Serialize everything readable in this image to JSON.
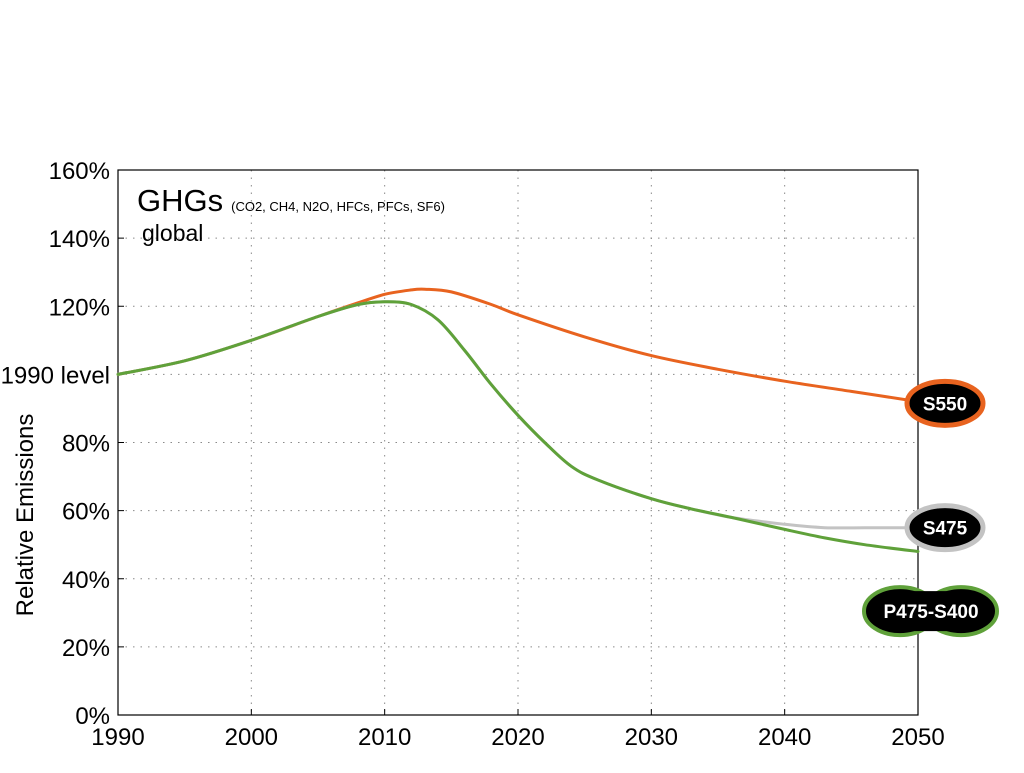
{
  "chart_data": {
    "type": "line",
    "title": "GHGs",
    "title_detail": "(CO2, CH4, N2O, HFCs, PFCs, SF6)",
    "subtitle": "global",
    "xlabel": "",
    "ylabel": "Relative Emissions",
    "xlim": [
      1990,
      2050
    ],
    "ylim": [
      0,
      160
    ],
    "grid": true,
    "x_ticks": [
      {
        "value": 1990,
        "label": "1990"
      },
      {
        "value": 2000,
        "label": "2000"
      },
      {
        "value": 2010,
        "label": "2010"
      },
      {
        "value": 2020,
        "label": "2020"
      },
      {
        "value": 2030,
        "label": "2030"
      },
      {
        "value": 2040,
        "label": "2040"
      },
      {
        "value": 2050,
        "label": "2050"
      }
    ],
    "y_ticks": [
      {
        "value": 0,
        "label": "0%"
      },
      {
        "value": 20,
        "label": "20%"
      },
      {
        "value": 40,
        "label": "40%"
      },
      {
        "value": 60,
        "label": "60%"
      },
      {
        "value": 80,
        "label": "80%"
      },
      {
        "value": 100,
        "label": "1990 level"
      },
      {
        "value": 120,
        "label": "120%"
      },
      {
        "value": 140,
        "label": "140%"
      },
      {
        "value": 160,
        "label": "160%"
      }
    ],
    "series": [
      {
        "name": "S550",
        "color": "#e8631f",
        "x": [
          1990,
          1995,
          2000,
          2005,
          2008,
          2010,
          2012,
          2013,
          2015,
          2018,
          2020,
          2025,
          2030,
          2035,
          2040,
          2045,
          2050
        ],
        "values": [
          100,
          104,
          110,
          117,
          121,
          123.5,
          124.8,
          125,
          124.2,
          120.5,
          117.5,
          111,
          105.5,
          101.5,
          98,
          95,
          92
        ]
      },
      {
        "name": "S475",
        "color": "#c3c3c3",
        "x": [
          1990,
          1995,
          2000,
          2005,
          2008,
          2010,
          2012,
          2014,
          2016,
          2018,
          2020,
          2022,
          2024,
          2026,
          2030,
          2033,
          2036,
          2040,
          2043,
          2046,
          2050
        ],
        "values": [
          100,
          104,
          110,
          117,
          120.5,
          121.3,
          120.5,
          116,
          107,
          97,
          88,
          80,
          73,
          69,
          63.5,
          60.5,
          58,
          56,
          55,
          55,
          55
        ]
      },
      {
        "name": "P475-S400",
        "color": "#5fa13a",
        "x": [
          1990,
          1995,
          2000,
          2005,
          2008,
          2010,
          2012,
          2014,
          2016,
          2018,
          2020,
          2022,
          2024,
          2026,
          2030,
          2033,
          2036,
          2040,
          2043,
          2046,
          2050
        ],
        "values": [
          100,
          104,
          110,
          117,
          120.5,
          121.3,
          120.5,
          116,
          107,
          97,
          88,
          80,
          73,
          69,
          63.5,
          60.5,
          58,
          54.5,
          52,
          50,
          48
        ]
      }
    ],
    "end_labels": [
      {
        "text": "S550",
        "color": "#e8631f",
        "y": 91.5
      },
      {
        "text": "S475",
        "color": "#c3c3c3",
        "y": 55
      },
      {
        "text": "P475-S400",
        "color": "#5fa13a",
        "y": 30.5
      }
    ]
  }
}
